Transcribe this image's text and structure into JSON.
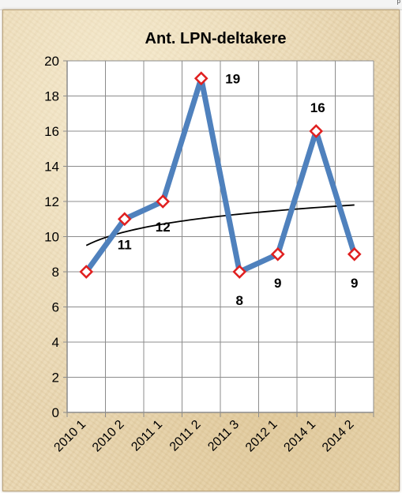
{
  "chart_data": {
    "type": "line",
    "title": "Ant. LPN-deltakere",
    "categories": [
      "2010 1",
      "2010 2",
      "2011 1",
      "2011 2",
      "2011 3",
      "2012 1",
      "2014 1",
      "2014 2"
    ],
    "series": [
      {
        "values": [
          8,
          11,
          12,
          19,
          8,
          9,
          16,
          9
        ],
        "color": "#4f81bd",
        "marker_color": "#e02020"
      }
    ],
    "data_labels": [
      "",
      "11",
      "12",
      "19",
      "8",
      "9",
      "16",
      "9"
    ],
    "trendline": {
      "type": "logarithmic",
      "color": "#000000",
      "start": 9.5,
      "end": 11.8
    },
    "ylim": [
      0,
      20
    ],
    "yticks": [
      0,
      2,
      4,
      6,
      8,
      10,
      12,
      14,
      16,
      18,
      20
    ],
    "grid": true,
    "legend": "none"
  }
}
